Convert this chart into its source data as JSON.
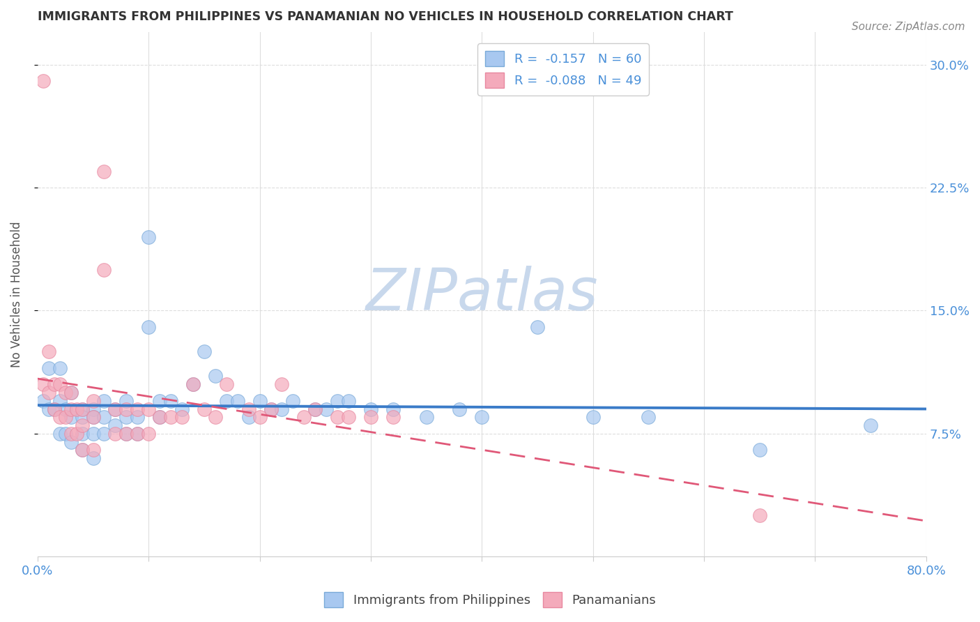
{
  "title": "IMMIGRANTS FROM PHILIPPINES VS PANAMANIAN NO VEHICLES IN HOUSEHOLD CORRELATION CHART",
  "source": "Source: ZipAtlas.com",
  "ylabel": "No Vehicles in Household",
  "xlim": [
    0.0,
    0.8
  ],
  "ylim": [
    0.0,
    0.32
  ],
  "xtick_pos": [
    0.0,
    0.1,
    0.2,
    0.3,
    0.4,
    0.5,
    0.6,
    0.7,
    0.8
  ],
  "xtick_labels": [
    "0.0%",
    "",
    "",
    "",
    "",
    "",
    "",
    "",
    "80.0%"
  ],
  "ytick_labels_right": [
    "30.0%",
    "22.5%",
    "15.0%",
    "7.5%"
  ],
  "ytick_positions_right": [
    0.3,
    0.225,
    0.15,
    0.075
  ],
  "legend1_label": "R =  -0.157   N = 60",
  "legend2_label": "R =  -0.088   N = 49",
  "scatter_blue_x": [
    0.005,
    0.01,
    0.01,
    0.015,
    0.02,
    0.02,
    0.02,
    0.025,
    0.025,
    0.03,
    0.03,
    0.03,
    0.04,
    0.04,
    0.04,
    0.04,
    0.05,
    0.05,
    0.05,
    0.05,
    0.06,
    0.06,
    0.06,
    0.07,
    0.07,
    0.08,
    0.08,
    0.08,
    0.09,
    0.09,
    0.1,
    0.1,
    0.11,
    0.11,
    0.12,
    0.13,
    0.14,
    0.15,
    0.16,
    0.17,
    0.18,
    0.19,
    0.2,
    0.21,
    0.22,
    0.23,
    0.25,
    0.26,
    0.27,
    0.28,
    0.3,
    0.32,
    0.35,
    0.38,
    0.4,
    0.45,
    0.5,
    0.55,
    0.65,
    0.75
  ],
  "scatter_blue_y": [
    0.095,
    0.115,
    0.09,
    0.09,
    0.115,
    0.095,
    0.075,
    0.09,
    0.075,
    0.1,
    0.085,
    0.07,
    0.09,
    0.085,
    0.075,
    0.065,
    0.09,
    0.085,
    0.075,
    0.06,
    0.095,
    0.085,
    0.075,
    0.09,
    0.08,
    0.095,
    0.085,
    0.075,
    0.085,
    0.075,
    0.195,
    0.14,
    0.095,
    0.085,
    0.095,
    0.09,
    0.105,
    0.125,
    0.11,
    0.095,
    0.095,
    0.085,
    0.095,
    0.09,
    0.09,
    0.095,
    0.09,
    0.09,
    0.095,
    0.095,
    0.09,
    0.09,
    0.085,
    0.09,
    0.085,
    0.14,
    0.085,
    0.085,
    0.065,
    0.08
  ],
  "scatter_pink_x": [
    0.005,
    0.005,
    0.01,
    0.01,
    0.015,
    0.015,
    0.02,
    0.02,
    0.025,
    0.025,
    0.03,
    0.03,
    0.03,
    0.035,
    0.035,
    0.04,
    0.04,
    0.04,
    0.05,
    0.05,
    0.05,
    0.06,
    0.06,
    0.07,
    0.07,
    0.08,
    0.08,
    0.09,
    0.09,
    0.1,
    0.1,
    0.11,
    0.12,
    0.13,
    0.14,
    0.15,
    0.16,
    0.17,
    0.19,
    0.2,
    0.21,
    0.22,
    0.24,
    0.25,
    0.27,
    0.28,
    0.3,
    0.32,
    0.65
  ],
  "scatter_pink_y": [
    0.29,
    0.105,
    0.125,
    0.1,
    0.105,
    0.09,
    0.105,
    0.085,
    0.1,
    0.085,
    0.1,
    0.09,
    0.075,
    0.09,
    0.075,
    0.09,
    0.08,
    0.065,
    0.095,
    0.085,
    0.065,
    0.235,
    0.175,
    0.09,
    0.075,
    0.09,
    0.075,
    0.09,
    0.075,
    0.09,
    0.075,
    0.085,
    0.085,
    0.085,
    0.105,
    0.09,
    0.085,
    0.105,
    0.09,
    0.085,
    0.09,
    0.105,
    0.085,
    0.09,
    0.085,
    0.085,
    0.085,
    0.085,
    0.025
  ],
  "blue_color": "#A8C8F0",
  "pink_color": "#F4AABB",
  "blue_line_color": "#3A7BC8",
  "pink_line_color": "#E05878",
  "blue_marker_edge": "#7AAAD8",
  "pink_marker_edge": "#E888A0",
  "watermark": "ZIPatlas",
  "watermark_color": "#C8D8EC",
  "background_color": "#FFFFFF",
  "grid_color": "#DDDDDD",
  "title_color": "#333333",
  "axis_color": "#4A90D9",
  "source_color": "#888888"
}
